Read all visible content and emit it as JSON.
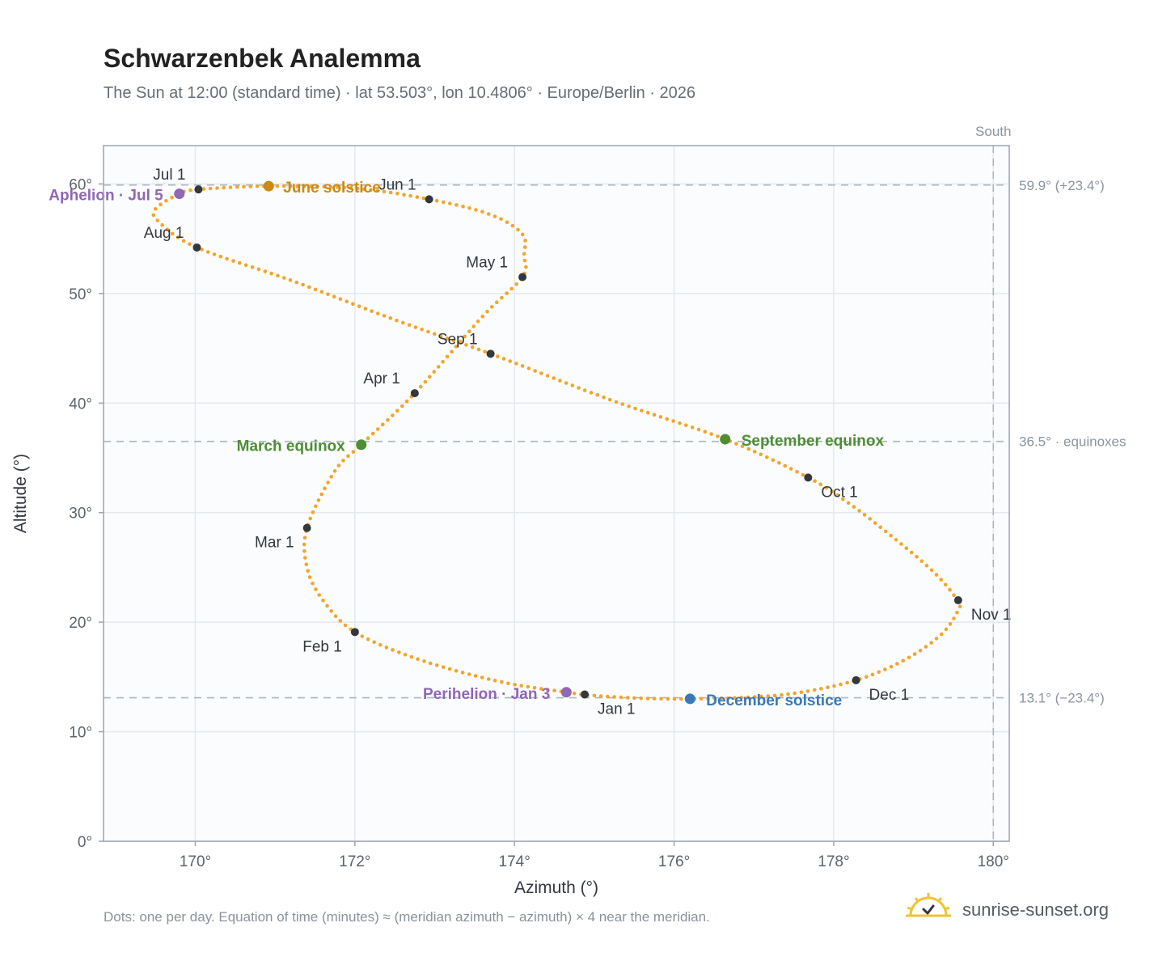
{
  "chart_data": {
    "type": "scatter",
    "title": "Schwarzenbek Analemma",
    "subtitle": "The Sun at 12:00 (standard time) · lat 53.503°, lon 10.4806° · Europe/Berlin · 2026",
    "xlabel": "Azimuth (°)",
    "ylabel": "Altitude (°)",
    "xlim": [
      168.85,
      180.2
    ],
    "ylim": [
      0,
      63.5
    ],
    "x_ticks": [
      170,
      172,
      174,
      176,
      178,
      180
    ],
    "y_ticks": [
      0,
      10,
      20,
      30,
      40,
      50,
      60
    ],
    "x_tick_suffix": "°",
    "y_tick_suffix": "°",
    "grid": true,
    "colors": {
      "path": "#f2a52b",
      "month": "#33383d",
      "june_solstice": "#cc8a14",
      "december_solstice": "#3a78b9",
      "equinox": "#4e8d34",
      "apsis": "#8f67b4",
      "reference": "#a9b6c1",
      "plot_bg": "#fbfcfd",
      "grid": "#e4e9ee",
      "frame": "#9aa5b0"
    },
    "south_line": {
      "azimuth": 180,
      "label": "South"
    },
    "reference_lines": [
      {
        "altitude": 59.9,
        "label": "59.9° (+23.4°)"
      },
      {
        "altitude": 36.5,
        "label": "36.5° · equinoxes"
      },
      {
        "altitude": 13.1,
        "label": "13.1° (−23.4°)"
      }
    ],
    "months": [
      {
        "label": "Jan 1",
        "az": 174.88,
        "alt": 13.4
      },
      {
        "label": "Feb 1",
        "az": 172.0,
        "alt": 19.1
      },
      {
        "label": "Mar 1",
        "az": 171.4,
        "alt": 28.6
      },
      {
        "label": "Apr 1",
        "az": 172.75,
        "alt": 40.9
      },
      {
        "label": "May 1",
        "az": 174.1,
        "alt": 51.5
      },
      {
        "label": "Jun 1",
        "az": 172.93,
        "alt": 58.6
      },
      {
        "label": "Jul 1",
        "az": 170.04,
        "alt": 59.5
      },
      {
        "label": "Aug 1",
        "az": 170.02,
        "alt": 54.2
      },
      {
        "label": "Sep 1",
        "az": 173.7,
        "alt": 44.5
      },
      {
        "label": "Oct 1",
        "az": 177.68,
        "alt": 33.2
      },
      {
        "label": "Nov 1",
        "az": 179.56,
        "alt": 22.0
      },
      {
        "label": "Dec 1",
        "az": 178.28,
        "alt": 14.7
      }
    ],
    "events": [
      {
        "label": "June solstice",
        "az": 170.92,
        "alt": 59.8,
        "kind": "june_solstice"
      },
      {
        "label": "December solstice",
        "az": 176.2,
        "alt": 13.0,
        "kind": "december_solstice"
      },
      {
        "label": "March equinox",
        "az": 172.08,
        "alt": 36.2,
        "kind": "equinox"
      },
      {
        "label": "September equinox",
        "az": 176.64,
        "alt": 36.7,
        "kind": "equinox"
      },
      {
        "label": "Aphelion · Jul 5",
        "az": 169.8,
        "alt": 59.1,
        "kind": "apsis"
      },
      {
        "label": "Perihelion · Jan 3",
        "az": 174.65,
        "alt": 13.6,
        "kind": "apsis"
      }
    ],
    "path_key_points": [
      [
        175.0,
        13.3
      ],
      [
        175.6,
        13.05
      ],
      [
        176.2,
        13.0
      ],
      [
        176.8,
        13.1
      ],
      [
        177.5,
        13.5
      ],
      [
        178.28,
        14.7
      ],
      [
        178.9,
        16.6
      ],
      [
        179.35,
        18.9
      ],
      [
        179.56,
        21.1
      ],
      [
        179.55,
        22.0
      ],
      [
        179.25,
        24.6
      ],
      [
        178.7,
        28.0
      ],
      [
        178.2,
        30.8
      ],
      [
        177.68,
        33.2
      ],
      [
        176.64,
        36.7
      ],
      [
        175.2,
        40.3
      ],
      [
        173.7,
        44.5
      ],
      [
        172.5,
        47.6
      ],
      [
        171.2,
        51.2
      ],
      [
        170.02,
        54.2
      ],
      [
        169.55,
        56.5
      ],
      [
        169.5,
        57.7
      ],
      [
        169.8,
        59.1
      ],
      [
        170.04,
        59.5
      ],
      [
        170.92,
        59.8
      ],
      [
        172.0,
        59.6
      ],
      [
        172.93,
        58.6
      ],
      [
        173.7,
        57.2
      ],
      [
        174.1,
        55.4
      ],
      [
        174.12,
        53.5
      ],
      [
        174.1,
        51.5
      ],
      [
        173.6,
        47.9
      ],
      [
        172.75,
        40.9
      ],
      [
        172.08,
        36.2
      ],
      [
        171.75,
        33.8
      ],
      [
        171.4,
        28.6
      ],
      [
        171.4,
        25.0
      ],
      [
        171.6,
        22.0
      ],
      [
        172.0,
        19.1
      ],
      [
        172.8,
        16.6
      ],
      [
        173.8,
        14.6
      ],
      [
        174.65,
        13.6
      ],
      [
        175.0,
        13.3
      ]
    ],
    "footnote": "Dots: one per day. Equation of time (minutes) ≈ (meridian azimuth − azimuth) × 4 near the meridian."
  },
  "brand": {
    "name": "sunrise-sunset.org",
    "icon": "sun-check-icon"
  }
}
